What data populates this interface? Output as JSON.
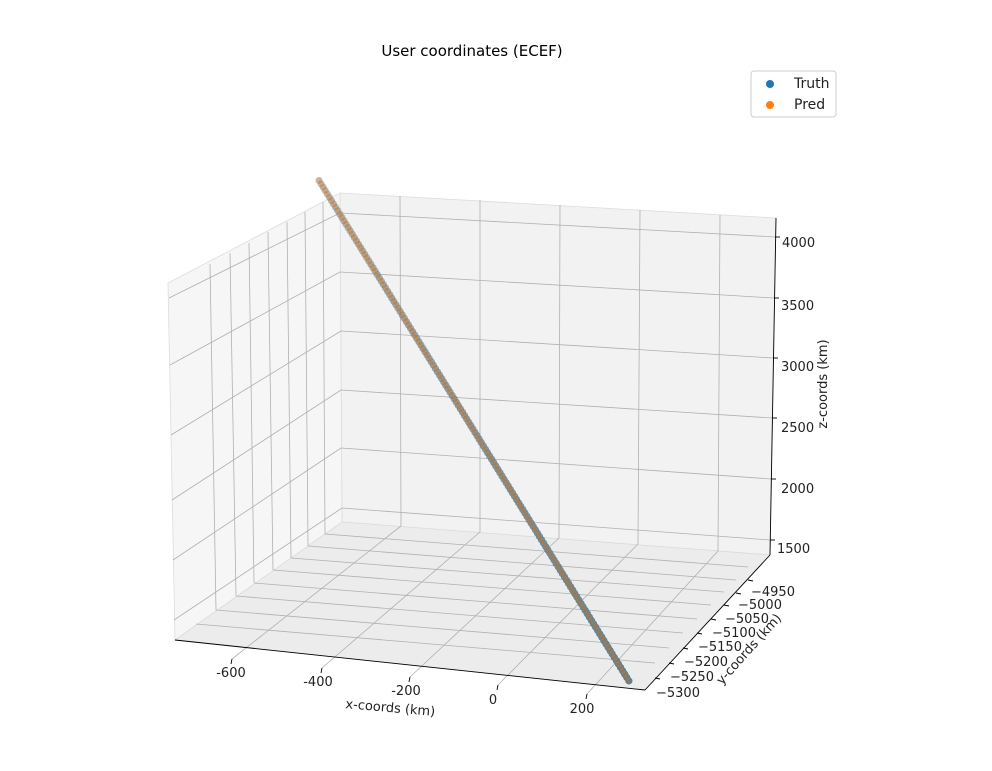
{
  "chart_data": {
    "type": "scatter",
    "title": "User coordinates (ECEF)",
    "xlabel": "x-coords (km)",
    "ylabel": "y-coords (km)",
    "zlabel": "z-coords (km)",
    "xlim": [
      -750,
      300
    ],
    "ylim": [
      -5320,
      -4920
    ],
    "zlim": [
      1500,
      4000
    ],
    "x_ticks": [
      "-600",
      "-400",
      "-200",
      "0",
      "200"
    ],
    "y_ticks": [
      "−4950",
      "−5000",
      "−5050",
      "−5100",
      "−5150",
      "−5200",
      "−5250",
      "−5300"
    ],
    "z_ticks": [
      "1500",
      "2000",
      "2500",
      "3000",
      "3500",
      "4000"
    ],
    "grid": true,
    "legend_position": "upper right",
    "series": [
      {
        "name": "Truth",
        "color": "#1f77b4",
        "start": {
          "x": 250,
          "y": -5300,
          "z": 1500
        },
        "end": {
          "x": -700,
          "y": -4950,
          "z": 4000
        },
        "n_points": 150
      },
      {
        "name": "Pred",
        "color": "#ff7f0e",
        "start": {
          "x": 250,
          "y": -5300,
          "z": 1500
        },
        "end": {
          "x": -700,
          "y": -4950,
          "z": 4000
        },
        "n_points": 150
      }
    ]
  }
}
